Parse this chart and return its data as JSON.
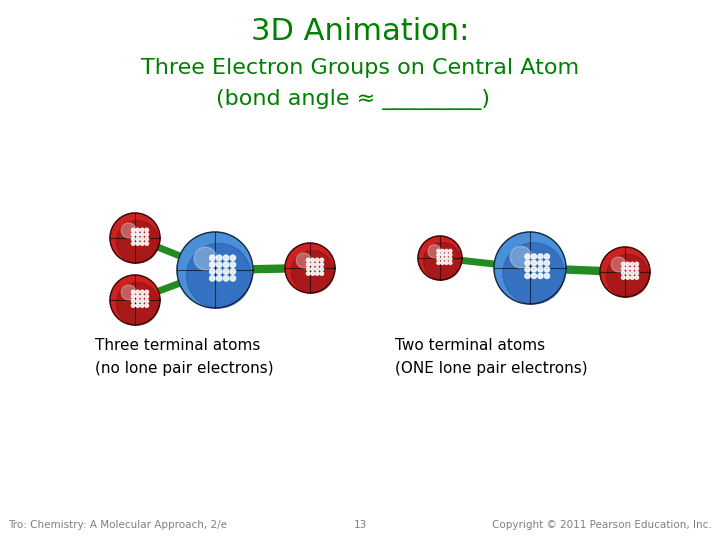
{
  "title_line1": "3D Animation:",
  "title_line2": "Three Electron Groups on Central Atom",
  "title_line3": "(bond angle ≈ _________)  ",
  "title_color": "#008000",
  "title_fontsize1": 22,
  "title_fontsize2": 16,
  "label_left_line1": "Three terminal atoms",
  "label_left_line2": "(no lone pair electrons)",
  "label_right_line1": "Two terminal atoms",
  "label_right_line2": "(ONE lone pair electrons)",
  "footer_left": "Tro: Chemistry: A Molecular Approach, 2/e",
  "footer_center": "13",
  "footer_right": "Copyright © 2011 Pearson Education, Inc.",
  "footer_color": "#808080",
  "footer_fontsize": 7.5,
  "label_fontsize": 11,
  "bg_color": "#ffffff",
  "bond_color": "#228B22",
  "blue_main": "#4a90d9",
  "blue_dark": "#2255aa",
  "blue_light": "#88bbee",
  "red_main": "#cc2222",
  "red_dark": "#881111",
  "red_light": "#ee6666"
}
